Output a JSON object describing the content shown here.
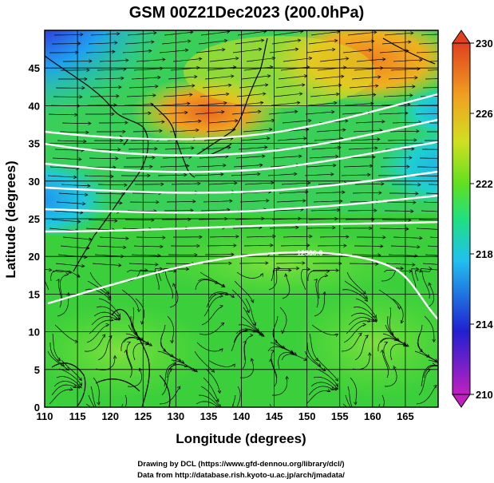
{
  "title": "GSM 00Z21Dec2023 (200.0hPa)",
  "x_axis": {
    "label": "Longitude (degrees)",
    "range": [
      110,
      170
    ],
    "ticks": [
      "110",
      "115",
      "120",
      "125",
      "130",
      "135",
      "140",
      "145",
      "150",
      "155",
      "160",
      "165"
    ]
  },
  "y_axis": {
    "label": "Latitude  (degrees)",
    "range": [
      0,
      50
    ],
    "ticks": [
      "0",
      "5",
      "10",
      "15",
      "20",
      "25",
      "30",
      "35",
      "40",
      "45"
    ]
  },
  "colorbar": {
    "range": [
      210,
      230
    ],
    "ticks": [
      "210",
      "214",
      "218",
      "222",
      "226",
      "230"
    ],
    "stops": [
      "#c020c0",
      "#2020d0",
      "#20c0f0",
      "#20e080",
      "#60e020",
      "#f0e020",
      "#f0a020",
      "#e04020"
    ]
  },
  "contour_label": "12300.0",
  "credits": {
    "line1": "Drawing by DCL (https://www.gfd-dennou.org/library/dcl/)",
    "line2": "Data from http://database.rish.kyoto-u.ac.jp/arch/jmadata/"
  },
  "colors": {
    "background_field": "#3ccf3c",
    "contour": "#ffffff",
    "vector": "#000000"
  }
}
